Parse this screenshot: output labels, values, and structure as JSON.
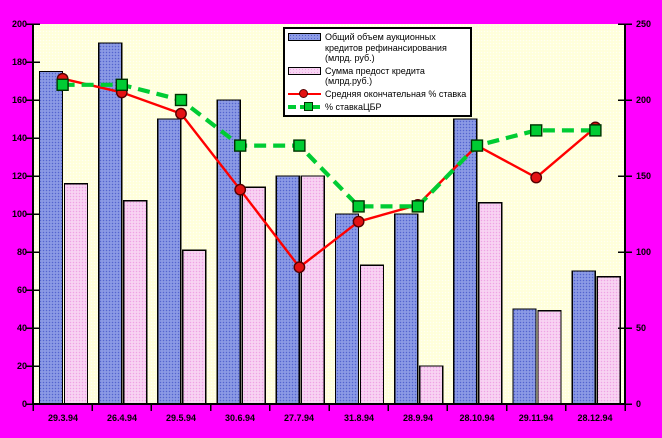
{
  "chart_data": {
    "type": "bar",
    "subtype": "bar-line-combo-dual-axis",
    "title": "",
    "categories": [
      "29.3.94",
      "26.4.94",
      "29.5.94",
      "30.6.94",
      "27.7.94",
      "31.8.94",
      "28.9.94",
      "28.10.94",
      "29.11.94",
      "28.12.94"
    ],
    "series": [
      {
        "name": "Общий объем аукционных кредитов рефинансирования (млрд. руб.)",
        "type": "bar",
        "axis": "left",
        "values": [
          175,
          190,
          150,
          160,
          120,
          100,
          100,
          150,
          50,
          70
        ],
        "fill": "#8d9ce6",
        "dot": "#5364cf",
        "pattern": "dotted"
      },
      {
        "name": "Сумма предост кредита (млрд.руб.)",
        "type": "bar",
        "axis": "left",
        "values": [
          116,
          107,
          81,
          114,
          120,
          73,
          20,
          106,
          49,
          67
        ],
        "fill": "#f8d5f3",
        "dot": "#efa3e4",
        "pattern": "dotted"
      },
      {
        "name": "Средняя окончательная % ставка",
        "type": "line",
        "axis": "right",
        "marker": "circle",
        "dashed": false,
        "values": [
          214,
          205,
          191,
          141,
          90,
          120,
          131,
          170,
          149,
          182
        ],
        "color": "#ff0000",
        "marker_fill": "#e31212",
        "marker_edge": "#550000"
      },
      {
        "name": "% ставкаЦБР",
        "type": "line",
        "axis": "right",
        "marker": "square",
        "dashed": true,
        "values": [
          210,
          210,
          200,
          170,
          170,
          130,
          130,
          170,
          180,
          180
        ],
        "color": "#00cc33",
        "marker_fill": "#00cc33",
        "marker_edge": "#003300"
      }
    ],
    "axes": {
      "left": {
        "min": 0,
        "max": 200,
        "ticks": [
          0,
          20,
          40,
          60,
          80,
          100,
          120,
          140,
          160,
          180,
          200
        ]
      },
      "right": {
        "min": 0,
        "max": 250,
        "ticks": [
          0,
          50,
          100,
          150,
          200,
          250
        ]
      }
    },
    "grid": false,
    "legend_position": "top-center-inside",
    "colors": {
      "outer_bg": "#ff00ff",
      "plot_bg": "#ffffd9",
      "plot_bg_dot": "#fffff5",
      "axis": "#000000",
      "legend_bg": "#ffffff"
    }
  }
}
